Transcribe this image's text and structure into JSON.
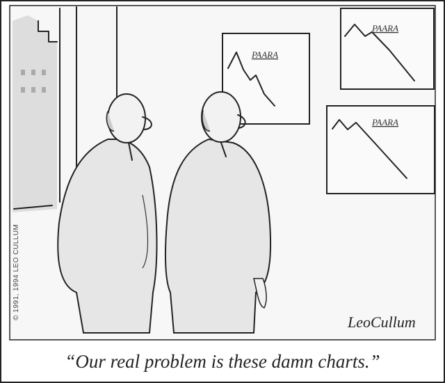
{
  "charts": [
    {
      "label": "PAARA"
    },
    {
      "label": "PAARA"
    },
    {
      "label": "PAARA"
    }
  ],
  "copyright": "© 1991, 1994 LEO CULLUM",
  "signature": "LeoCullum",
  "caption": "“Our real problem is these damn charts.”"
}
